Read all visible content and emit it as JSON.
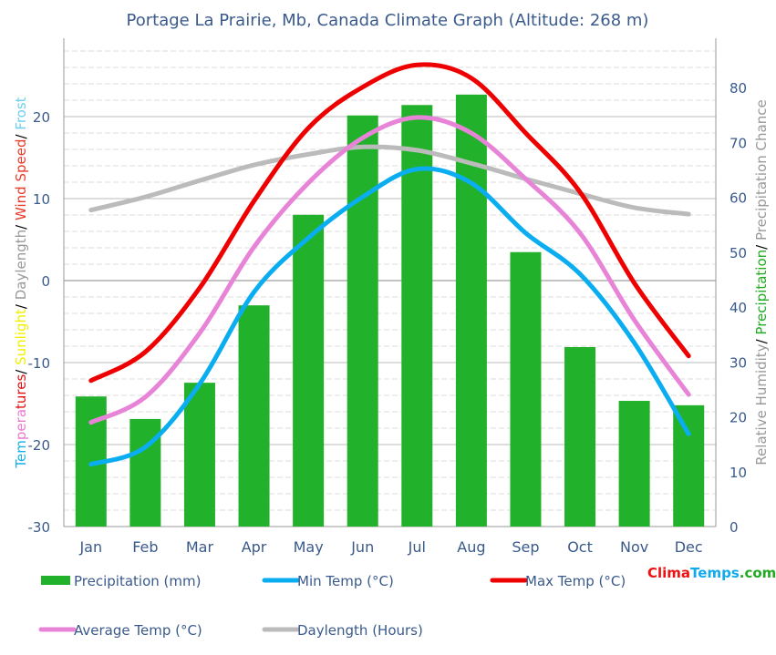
{
  "chart_data": {
    "type": "bar+line",
    "title": "Portage La Prairie, Mb, Canada Climate Graph (Altitude: 268 m)",
    "categories": [
      "Jan",
      "Feb",
      "Mar",
      "Apr",
      "May",
      "Jun",
      "Jul",
      "Aug",
      "Sep",
      "Oct",
      "Nov",
      "Dec"
    ],
    "left_axis": {
      "ylim": [
        -30,
        29
      ],
      "ticks": [
        -30,
        -20,
        -10,
        0,
        10,
        20
      ],
      "label_parts": [
        {
          "t": "Tem",
          "c": "#1ab0e8"
        },
        {
          "t": "pera",
          "c": "#e87ccf"
        },
        {
          "t": "tures",
          "c": "#e01010"
        },
        {
          "t": "/ ",
          "c": "#000000"
        },
        {
          "t": "Sunlight",
          "c": "#f0f000"
        },
        {
          "t": "/ ",
          "c": "#000000"
        },
        {
          "t": "Daylength",
          "c": "#999999"
        },
        {
          "t": "/ ",
          "c": "#000000"
        },
        {
          "t": "Wind Speed",
          "c": "#e83a2a"
        },
        {
          "t": "/ ",
          "c": "#000000"
        },
        {
          "t": "Frost",
          "c": "#6dcff0"
        }
      ]
    },
    "right_axis": {
      "ylim": [
        0,
        88
      ],
      "ticks": [
        0,
        10,
        20,
        30,
        40,
        50,
        60,
        70,
        80
      ],
      "label_parts": [
        {
          "t": "Relative Humidity",
          "c": "#999999"
        },
        {
          "t": "/ ",
          "c": "#000000"
        },
        {
          "t": "Precipitation",
          "c": "#22aa22"
        },
        {
          "t": "/ ",
          "c": "#000000"
        },
        {
          "t": "Precipitation Chance",
          "c": "#999999"
        }
      ]
    },
    "grid": true,
    "series": [
      {
        "name": "Precipitation (mm)",
        "type": "bar",
        "axis": "right",
        "color": "#22b12a",
        "values": [
          23.7,
          19.6,
          26.2,
          40.3,
          56.8,
          74.9,
          76.8,
          78.7,
          50.0,
          32.7,
          22.9,
          22.1
        ]
      },
      {
        "name": "Min Temp (°C)",
        "type": "line",
        "axis": "left",
        "color": "#0aaef0",
        "values": [
          -22.4,
          -20.3,
          -12.6,
          -1.4,
          5.2,
          10.2,
          13.6,
          11.9,
          5.8,
          0.8,
          -7.6,
          -18.7
        ]
      },
      {
        "name": "Max Temp (°C)",
        "type": "line",
        "axis": "left",
        "color": "#ee0000",
        "values": [
          -12.2,
          -8.7,
          -0.9,
          9.7,
          18.6,
          23.6,
          26.3,
          24.7,
          18.0,
          10.8,
          -0.3,
          -9.2
        ]
      },
      {
        "name": "Average Temp (°C)",
        "type": "line",
        "axis": "left",
        "color": "#e884d8",
        "values": [
          -17.3,
          -14.2,
          -6.4,
          4.1,
          11.9,
          17.4,
          19.9,
          18.0,
          12.4,
          5.8,
          -4.8,
          -13.9
        ]
      },
      {
        "name": "Daylength (Hours)",
        "type": "line",
        "axis": "left",
        "color": "#bbbbbb",
        "values": [
          8.6,
          10.2,
          12.2,
          14.1,
          15.4,
          16.3,
          15.9,
          14.3,
          12.4,
          10.6,
          8.9,
          8.1
        ]
      }
    ],
    "legend": "bottom"
  },
  "logo": {
    "parts": [
      {
        "t": "Clima",
        "c": "#ee1111"
      },
      {
        "t": "Temps",
        "c": "#11aaee"
      },
      {
        "t": ".com",
        "c": "#22aa22"
      }
    ]
  }
}
